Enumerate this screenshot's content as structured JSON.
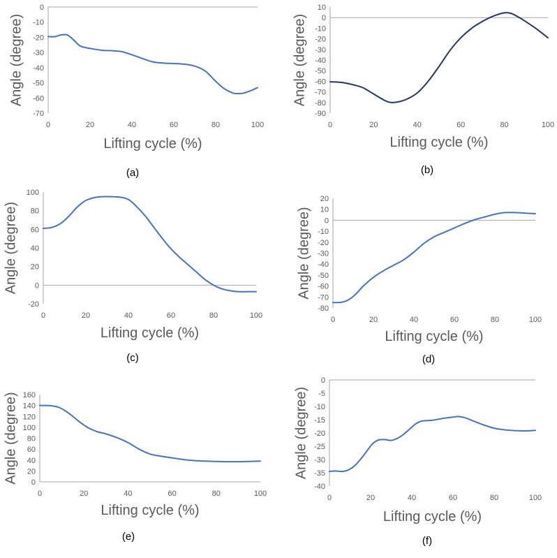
{
  "figure": {
    "line_color": "#4472C4",
    "axis_color": "#a6a6a6",
    "text_color": "#595959"
  },
  "chart_data": [
    {
      "id": "a",
      "type": "line",
      "panel_label": "(a)",
      "xlabel": "Lifting cycle (%)",
      "ylabel": "Angle (degree)",
      "xlim": [
        0,
        100
      ],
      "ylim": [
        -70,
        0
      ],
      "xticks": [
        0,
        20,
        40,
        60,
        80,
        100
      ],
      "yticks": [
        0,
        -10,
        -20,
        -30,
        -40,
        -50,
        -60,
        -70
      ],
      "zero_line": true,
      "series": [
        {
          "name": "angle",
          "color": "#4472C4",
          "x": [
            0,
            3,
            6,
            9,
            12,
            15,
            18,
            22,
            26,
            30,
            35,
            40,
            45,
            50,
            55,
            60,
            65,
            70,
            75,
            80,
            84,
            88,
            90,
            93,
            96,
            100
          ],
          "y": [
            -19.5,
            -19.6,
            -18.5,
            -18.4,
            -21.5,
            -25.5,
            -26.8,
            -27.8,
            -28.6,
            -28.8,
            -29.4,
            -31.5,
            -34,
            -36.2,
            -37,
            -37.3,
            -37.7,
            -39,
            -42.2,
            -49,
            -53.8,
            -56.6,
            -57.1,
            -56.9,
            -55.6,
            -53.2
          ]
        }
      ]
    },
    {
      "id": "b",
      "type": "line",
      "panel_label": "(b)",
      "xlabel": "Lifting cycle (%)",
      "ylabel": "Angle (degree)",
      "xlim": [
        0,
        100
      ],
      "ylim": [
        -90,
        10
      ],
      "xticks": [
        0,
        20,
        40,
        60,
        80,
        100
      ],
      "yticks": [
        10,
        0,
        -10,
        -20,
        -30,
        -40,
        -50,
        -60,
        -70,
        -80,
        -90
      ],
      "zero_line": true,
      "series": [
        {
          "name": "angle",
          "color": "#1f3864",
          "x": [
            0,
            5,
            10,
            15,
            20,
            25,
            28,
            31,
            35,
            40,
            45,
            50,
            55,
            60,
            65,
            70,
            75,
            80,
            83,
            86,
            90,
            95,
            100
          ],
          "y": [
            -60.5,
            -61,
            -63,
            -66,
            -72,
            -78,
            -80,
            -79.5,
            -77,
            -71,
            -60,
            -46,
            -31,
            -19,
            -10,
            -3.5,
            1.5,
            4.5,
            4,
            1,
            -4,
            -11,
            -19
          ]
        }
      ]
    },
    {
      "id": "c",
      "type": "line",
      "panel_label": "(c)",
      "xlabel": "Lifting cycle (%)",
      "ylabel": "Angle (degree)",
      "xlim": [
        0,
        100
      ],
      "ylim": [
        -20,
        100
      ],
      "xticks": [
        0,
        20,
        40,
        60,
        80,
        100
      ],
      "yticks": [
        100,
        80,
        60,
        40,
        20,
        0,
        -20
      ],
      "zero_line": true,
      "series": [
        {
          "name": "angle",
          "color": "#4472C4",
          "x": [
            0,
            4,
            8,
            12,
            16,
            20,
            24,
            28,
            32,
            36,
            40,
            44,
            48,
            52,
            56,
            60,
            64,
            68,
            72,
            76,
            80,
            84,
            88,
            92,
            96,
            100
          ],
          "y": [
            61,
            62,
            66,
            74,
            84,
            91,
            94,
            95,
            95,
            94.5,
            92,
            84,
            74,
            62,
            50,
            39,
            30,
            22,
            14,
            6,
            0,
            -4,
            -6,
            -7,
            -7,
            -7
          ]
        }
      ]
    },
    {
      "id": "d",
      "type": "line",
      "panel_label": "(d)",
      "xlabel": "Lifting cycle (%)",
      "ylabel": "Angle (degree)",
      "xlim": [
        0,
        100
      ],
      "ylim": [
        -80,
        20
      ],
      "xticks": [
        0,
        20,
        40,
        60,
        80,
        100
      ],
      "yticks": [
        20,
        10,
        0,
        -10,
        -20,
        -30,
        -40,
        -50,
        -60,
        -70,
        -80
      ],
      "zero_line": true,
      "series": [
        {
          "name": "angle",
          "color": "#4472C4",
          "x": [
            0,
            3,
            6,
            9,
            12,
            15,
            20,
            25,
            30,
            35,
            40,
            45,
            50,
            55,
            60,
            65,
            70,
            75,
            80,
            85,
            90,
            95,
            100
          ],
          "y": [
            -75,
            -75,
            -74,
            -71,
            -66,
            -60,
            -52,
            -46,
            -41,
            -36,
            -29,
            -21,
            -15,
            -11,
            -7,
            -3,
            0.5,
            3,
            5.5,
            7,
            7,
            6.5,
            6
          ]
        }
      ]
    },
    {
      "id": "e",
      "type": "line",
      "panel_label": "(e)",
      "xlabel": "Lifting cycle (%)",
      "ylabel": "Angle (degree)",
      "xlim": [
        0,
        100
      ],
      "ylim": [
        0,
        160
      ],
      "xticks": [
        0,
        20,
        40,
        60,
        80,
        100
      ],
      "yticks": [
        160,
        140,
        120,
        100,
        80,
        60,
        40,
        20,
        0
      ],
      "zero_line": false,
      "series": [
        {
          "name": "angle",
          "color": "#4472C4",
          "x": [
            0,
            3,
            6,
            9,
            12,
            15,
            18,
            22,
            26,
            30,
            35,
            40,
            45,
            50,
            55,
            60,
            65,
            70,
            75,
            80,
            85,
            90,
            95,
            100
          ],
          "y": [
            140,
            140,
            139,
            136,
            129,
            120,
            110,
            99,
            92,
            88,
            81,
            72,
            60,
            51,
            47,
            44,
            41,
            39,
            38,
            37.5,
            37,
            37,
            37.5,
            38
          ]
        }
      ]
    },
    {
      "id": "f",
      "type": "line",
      "panel_label": "(f)",
      "xlabel": "Lifting cycle (%)",
      "ylabel": "Angle (degree)",
      "xlim": [
        0,
        100
      ],
      "ylim": [
        -40,
        0
      ],
      "xticks": [
        0,
        20,
        40,
        60,
        80,
        100
      ],
      "yticks": [
        0,
        -5,
        -10,
        -15,
        -20,
        -25,
        -30,
        -35,
        -40
      ],
      "zero_line": true,
      "series": [
        {
          "name": "angle",
          "color": "#4472C4",
          "x": [
            0,
            3,
            6,
            9,
            12,
            15,
            18,
            21,
            24,
            27,
            30,
            33,
            36,
            39,
            42,
            45,
            50,
            55,
            60,
            63,
            66,
            70,
            75,
            80,
            85,
            90,
            95,
            100
          ],
          "y": [
            -34.5,
            -34.3,
            -34.5,
            -34,
            -32.5,
            -30,
            -27,
            -24,
            -22.6,
            -22.5,
            -22.8,
            -22,
            -20.5,
            -18.5,
            -16.5,
            -15.5,
            -15.2,
            -14.5,
            -14,
            -13.8,
            -14.3,
            -15.5,
            -17,
            -18.2,
            -18.8,
            -19.1,
            -19.2,
            -19
          ]
        }
      ]
    }
  ]
}
